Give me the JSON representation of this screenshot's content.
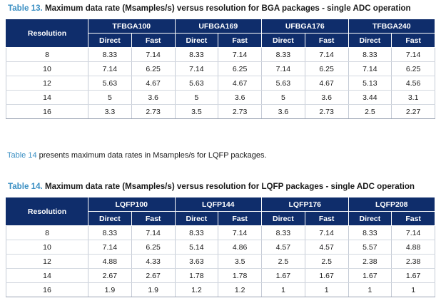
{
  "table13": {
    "caption_num": "Table 13.",
    "caption_text": "Maximum data rate (Msamples/s) versus resolution for BGA packages - single ADC operation",
    "resolution_header": "Resolution",
    "packages": [
      "TFBGA100",
      "UFBGA169",
      "UFBGA176",
      "TFBGA240"
    ],
    "subheaders": [
      "Direct",
      "Fast",
      "Direct",
      "Fast",
      "Direct",
      "Fast",
      "Direct",
      "Fast"
    ],
    "rows": [
      [
        "8",
        "8.33",
        "7.14",
        "8.33",
        "7.14",
        "8.33",
        "7.14",
        "8.33",
        "7.14"
      ],
      [
        "10",
        "7.14",
        "6.25",
        "7.14",
        "6.25",
        "7.14",
        "6.25",
        "7.14",
        "6.25"
      ],
      [
        "12",
        "5.63",
        "4.67",
        "5.63",
        "4.67",
        "5.63",
        "4.67",
        "5.13",
        "4.56"
      ],
      [
        "14",
        "5",
        "3.6",
        "5",
        "3.6",
        "5",
        "3.6",
        "3.44",
        "3.1"
      ],
      [
        "16",
        "3.3",
        "2.73",
        "3.5",
        "2.73",
        "3.6",
        "2.73",
        "2.5",
        "2.27"
      ]
    ]
  },
  "paragraph": {
    "link": "Table 14",
    "text": " presents maximum data rates in Msamples/s for LQFP packages."
  },
  "table14": {
    "caption_num": "Table 14.",
    "caption_text": "Maximum data rate (Msamples/s) versus resolution for LQFP packages - single ADC operation",
    "resolution_header": "Resolution",
    "packages": [
      "LQFP100",
      "LQFP144",
      "LQFP176",
      "LQFP208"
    ],
    "subheaders": [
      "Direct",
      "Fast",
      "Direct",
      "Fast",
      "Direct",
      "Fast",
      "Direct",
      "Fast"
    ],
    "rows": [
      [
        "8",
        "8.33",
        "7.14",
        "8.33",
        "7.14",
        "8.33",
        "7.14",
        "8.33",
        "7.14"
      ],
      [
        "10",
        "7.14",
        "6.25",
        "5.14",
        "4.86",
        "4.57",
        "4.57",
        "5.57",
        "4.88"
      ],
      [
        "12",
        "4.88",
        "4.33",
        "3.63",
        "3.5",
        "2.5",
        "2.5",
        "2.38",
        "2.38"
      ],
      [
        "14",
        "2.67",
        "2.67",
        "1.78",
        "1.78",
        "1.67",
        "1.67",
        "1.67",
        "1.67"
      ],
      [
        "16",
        "1.9",
        "1.9",
        "1.2",
        "1.2",
        "1",
        "1",
        "1",
        "1"
      ]
    ]
  }
}
